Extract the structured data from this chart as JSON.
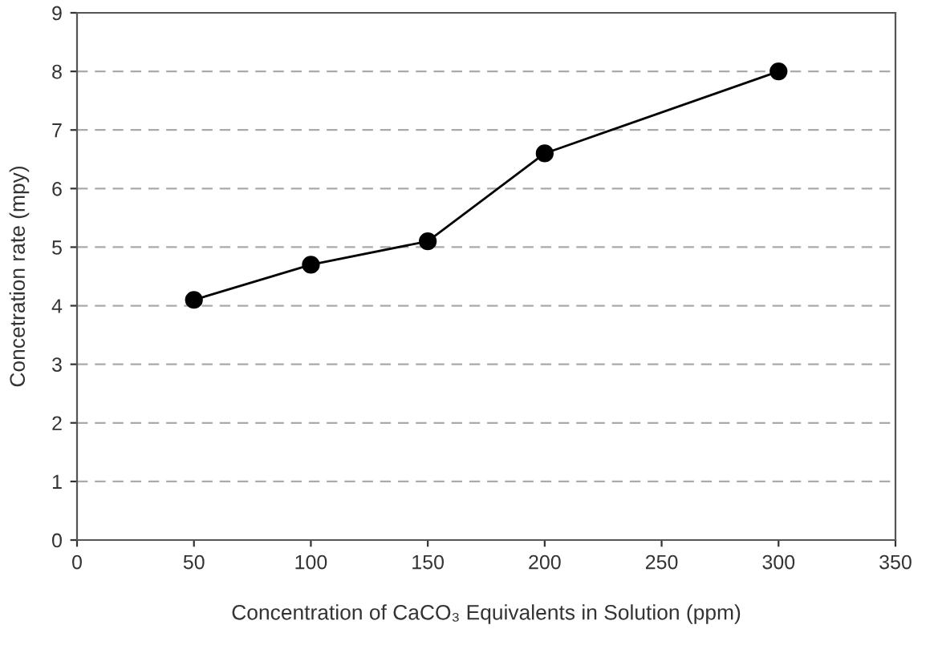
{
  "chart_data": {
    "type": "line",
    "xlabel": "Concentration of CaCO₃ Equivalents in Solution (ppm)",
    "ylabel": "Concetration rate (mpy)",
    "x": [
      50,
      100,
      150,
      200,
      300
    ],
    "series": [
      {
        "color": "#000000",
        "values": [
          4.1,
          4.7,
          5.1,
          6.6,
          8.0
        ]
      }
    ],
    "xlim": [
      0,
      350
    ],
    "xticks": [
      0,
      50,
      100,
      150,
      200,
      250,
      300,
      350
    ],
    "ylim": [
      0,
      9
    ],
    "yticks": [
      0,
      1,
      2,
      3,
      4,
      5,
      6,
      7,
      8,
      9
    ],
    "grid": "y",
    "marker": "circle",
    "line_style": "solid"
  }
}
